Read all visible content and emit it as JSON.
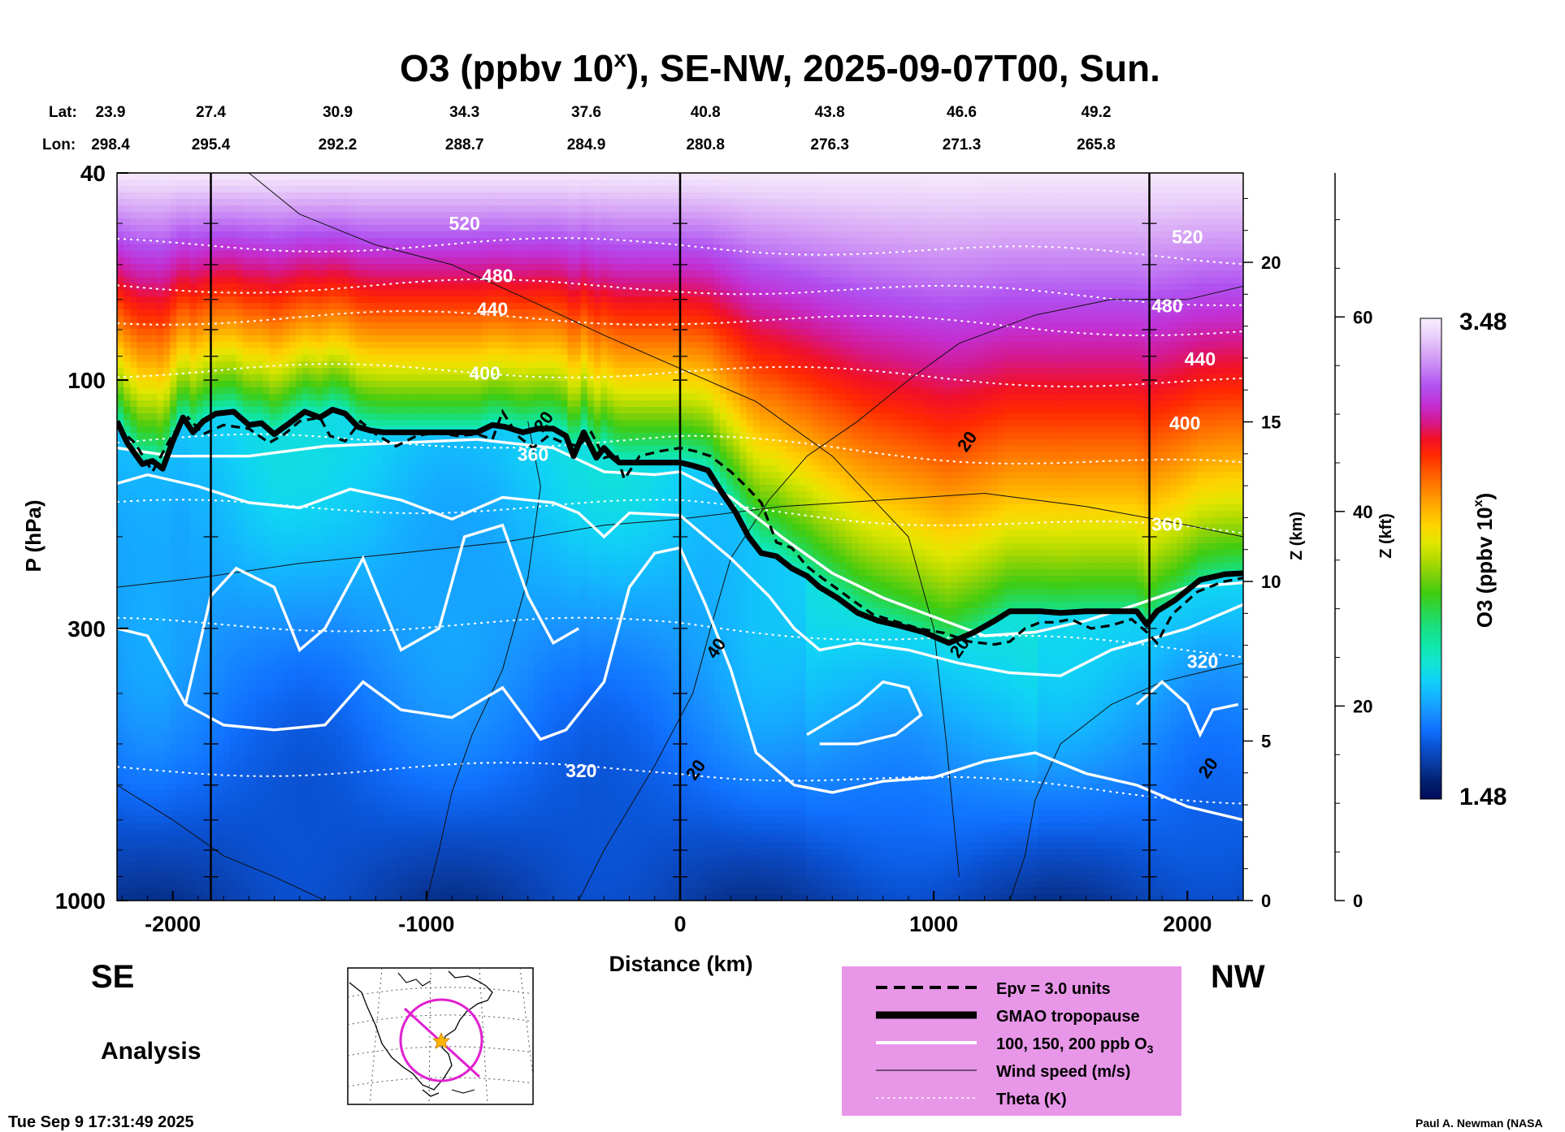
{
  "chart_data": {
    "type": "heatmap",
    "title": "O3 (ppbv 10",
    "title_sup": "x",
    "title_rest": "), SE-NW, 2025-09-07T00, Sun.",
    "lat_label": "Lat:",
    "lon_label": "Lon:",
    "lat": [
      "23.9",
      "27.4",
      "30.9",
      "34.3",
      "37.6",
      "40.8",
      "43.8",
      "46.6",
      "49.2"
    ],
    "lon": [
      "298.4",
      "295.4",
      "292.2",
      "288.7",
      "284.9",
      "280.8",
      "276.3",
      "271.3",
      "265.8"
    ],
    "station_distance_km": [
      -2220,
      -1850,
      -1350,
      -850,
      -370,
      100,
      590,
      1110,
      1640
    ],
    "xlabel": "Distance (km)",
    "xlim": [
      -2220,
      2220
    ],
    "xticks": [
      {
        "value": -2000,
        "label": "-2000"
      },
      {
        "value": -1000,
        "label": "-1000"
      },
      {
        "value": 0,
        "label": "0"
      },
      {
        "value": 1000,
        "label": "1000"
      },
      {
        "value": 2000,
        "label": "2000"
      }
    ],
    "ylabel": "P (hPa)",
    "ylim": [
      1000,
      40
    ],
    "yscale": "log",
    "yticks": [
      {
        "value": 40,
        "label": "40"
      },
      {
        "value": 100,
        "label": "100"
      },
      {
        "value": 300,
        "label": "300"
      },
      {
        "value": 1000,
        "label": "1000"
      }
    ],
    "z_km_label": "Z (km)",
    "z_km_ticks": [
      {
        "value": 0,
        "label": "0"
      },
      {
        "value": 5,
        "label": "5"
      },
      {
        "value": 10,
        "label": "10"
      },
      {
        "value": 15,
        "label": "15"
      },
      {
        "value": 20,
        "label": "20"
      }
    ],
    "z_kft_label": "Z (kft)",
    "z_kft_ticks": [
      {
        "value": 0,
        "label": "0"
      },
      {
        "value": 20,
        "label": "20"
      },
      {
        "value": 40,
        "label": "40"
      },
      {
        "value": 60,
        "label": "60"
      }
    ],
    "vertical_lines_km": [
      -1850,
      0,
      1850
    ],
    "colorbar": {
      "label": "O3 (ppbv 10",
      "label_sup": "x",
      "label_rest": ")",
      "min": 1.48,
      "max": 3.48,
      "min_label": "1.48",
      "max_label": "3.48",
      "colors": [
        "#000a5a",
        "#00206e",
        "#0a3aa0",
        "#0a50d0",
        "#1070ff",
        "#1890ff",
        "#14b4ff",
        "#10d4f4",
        "#12e4d0",
        "#10e6a8",
        "#18e080",
        "#2ad64a",
        "#40cc10",
        "#7cd00a",
        "#b4dc00",
        "#e4e600",
        "#ffd200",
        "#ffac00",
        "#ff8400",
        "#ff5a00",
        "#ff2a00",
        "#f01028",
        "#d41890",
        "#c230d4",
        "#b050f0",
        "#c47ef4",
        "#d8a8f6",
        "#ead0fa",
        "#f8eefc"
      ]
    },
    "tropopause": {
      "name": "GMAO tropopause",
      "x": [
        -2220,
        -2180,
        -2120,
        -2080,
        -2040,
        -2000,
        -1960,
        -1920,
        -1880,
        -1830,
        -1760,
        -1700,
        -1650,
        -1600,
        -1540,
        -1480,
        -1420,
        -1370,
        -1320,
        -1270,
        -1220,
        -1170,
        -1120,
        -1060,
        -1000,
        -940,
        -880,
        -800,
        -740,
        -690,
        -620,
        -560,
        -500,
        -450,
        -420,
        -380,
        -330,
        -300,
        -270,
        -240,
        -200,
        -150,
        -100,
        -50,
        0,
        50,
        110,
        160,
        220,
        270,
        320,
        380,
        440,
        500,
        550,
        620,
        700,
        780,
        860,
        960,
        1060,
        1160,
        1240,
        1300,
        1360,
        1420,
        1500,
        1600,
        1700,
        1800,
        1840,
        1880,
        1950,
        2050,
        2150,
        2220
      ],
      "y": [
        120,
        132,
        145,
        143,
        148,
        131,
        118,
        126,
        120,
        116,
        115,
        122,
        121,
        127,
        121,
        115,
        118,
        114,
        116,
        123,
        125,
        126,
        126,
        126,
        126,
        126,
        126,
        126,
        122,
        123,
        126,
        124,
        124,
        128,
        140,
        126,
        141,
        135,
        140,
        144,
        144,
        144,
        144,
        144,
        144,
        146,
        149,
        163,
        180,
        200,
        215,
        218,
        230,
        238,
        250,
        262,
        280,
        290,
        296,
        305,
        320,
        305,
        290,
        278,
        278,
        278,
        280,
        278,
        278,
        278,
        295,
        278,
        265,
        242,
        236,
        235
      ]
    },
    "epv": {
      "name": "Epv = 3.0 units",
      "x": [
        -2220,
        -2150,
        -2080,
        -2000,
        -1940,
        -1880,
        -1800,
        -1700,
        -1620,
        -1560,
        -1500,
        -1420,
        -1380,
        -1320,
        -1260,
        -1200,
        -1120,
        -1040,
        -960,
        -880,
        -800,
        -740,
        -700,
        -640,
        -580,
        -520,
        -460,
        -400,
        -350,
        -300,
        -250,
        -220,
        -160,
        -80,
        0,
        60,
        120,
        200,
        260,
        320,
        380,
        440,
        500,
        560,
        620,
        680,
        760,
        840,
        940,
        1040,
        1140,
        1240,
        1300,
        1360,
        1420,
        1480,
        1540,
        1620,
        1700,
        1780,
        1840,
        1880,
        1940,
        2040,
        2140,
        2220
      ],
      "y": [
        123,
        132,
        150,
        127,
        118,
        127,
        122,
        124,
        132,
        127,
        120,
        118,
        128,
        131,
        120,
        127,
        134,
        128,
        126,
        128,
        127,
        130,
        115,
        128,
        135,
        128,
        132,
        134,
        126,
        141,
        139,
        155,
        140,
        137,
        135,
        137,
        140,
        150,
        160,
        172,
        205,
        210,
        228,
        240,
        252,
        265,
        282,
        290,
        300,
        306,
        318,
        322,
        318,
        300,
        292,
        292,
        288,
        300,
        296,
        288,
        305,
        320,
        282,
        255,
        244,
        240
      ]
    },
    "theta_labels": [
      {
        "text": "520",
        "x": -850,
        "p": 50
      },
      {
        "text": "480",
        "x": -720,
        "p": 63
      },
      {
        "text": "440",
        "x": -740,
        "p": 73
      },
      {
        "text": "400",
        "x": -770,
        "p": 97
      },
      {
        "text": "360",
        "x": -580,
        "p": 139
      },
      {
        "text": "320",
        "x": -390,
        "p": 563
      },
      {
        "text": "520",
        "x": 2000,
        "p": 53
      },
      {
        "text": "480",
        "x": 1920,
        "p": 72
      },
      {
        "text": "440",
        "x": 2050,
        "p": 91
      },
      {
        "text": "400",
        "x": 1990,
        "p": 121
      },
      {
        "text": "360",
        "x": 1920,
        "p": 189
      },
      {
        "text": "320",
        "x": 2060,
        "p": 347
      }
    ],
    "wind_labels": [
      {
        "text": "20",
        "x": -540,
        "p": 120
      },
      {
        "text": "40",
        "x": 140,
        "p": 327
      },
      {
        "text": "20",
        "x": 60,
        "p": 560
      },
      {
        "text": "20",
        "x": 1130,
        "p": 131
      },
      {
        "text": "20",
        "x": 1100,
        "p": 326
      },
      {
        "text": "20",
        "x": 2080,
        "p": 555
      }
    ],
    "legend": {
      "items": [
        {
          "label": "Epv = 3.0 units",
          "style": "dashed"
        },
        {
          "label": "GMAO tropopause",
          "style": "thick"
        },
        {
          "label": "100, 150, 200 ppb O",
          "sub": "3",
          "style": "white"
        },
        {
          "label": "Wind speed (m/s)",
          "style": "thin"
        },
        {
          "label": "Theta (K)",
          "style": "dotted"
        }
      ],
      "background": "#e896e8"
    },
    "grid": false,
    "legend_position": "bottom-right"
  },
  "labels": {
    "se": "SE",
    "nw": "NW",
    "analysis": "Analysis",
    "timestamp": "Tue Sep  9 17:31:49 2025",
    "credit": "Paul A. Newman (NASA"
  }
}
